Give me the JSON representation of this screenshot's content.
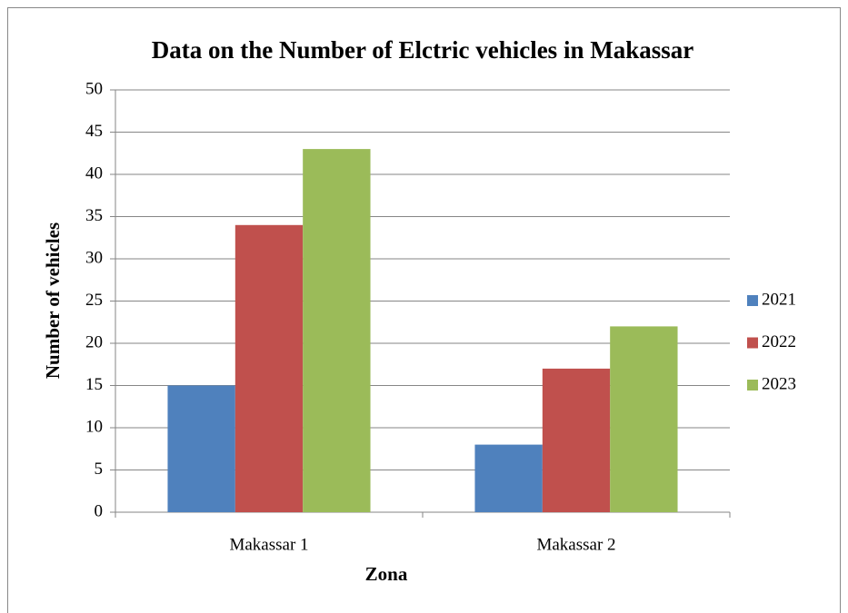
{
  "chart_data": {
    "type": "bar",
    "title": "Data on the Number of Elctric vehicles in Makassar",
    "xlabel": "Zona",
    "ylabel": "Number of vehicles",
    "categories": [
      "Makassar 1",
      "Makassar 2"
    ],
    "series": [
      {
        "name": "2021",
        "color": "#4f81bd",
        "values": [
          15,
          8
        ]
      },
      {
        "name": "2022",
        "color": "#c0504d",
        "values": [
          34,
          17
        ]
      },
      {
        "name": "2023",
        "color": "#9bbb59",
        "values": [
          43,
          22
        ]
      }
    ],
    "ylim": [
      0,
      50
    ],
    "yticks": [
      0,
      5,
      10,
      15,
      20,
      25,
      30,
      35,
      40,
      45,
      50
    ],
    "grid": true,
    "legend": "right"
  }
}
